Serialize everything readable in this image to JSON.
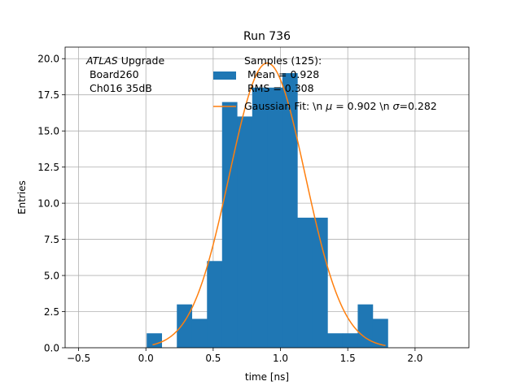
{
  "chart_data": {
    "type": "bar",
    "title": "Run 736",
    "xlabel": "time [ns]",
    "ylabel": "Entries",
    "xlim": [
      -0.6,
      2.4
    ],
    "ylim": [
      0,
      20.8
    ],
    "grid": true,
    "xticks": [
      -0.5,
      0.0,
      0.5,
      1.0,
      1.5,
      2.0
    ],
    "xtick_labels": [
      "−0.5",
      "0.0",
      "0.5",
      "1.0",
      "1.5",
      "2.0"
    ],
    "yticks": [
      0.0,
      2.5,
      5.0,
      7.5,
      10.0,
      12.5,
      15.0,
      17.5,
      20.0
    ],
    "ytick_labels": [
      "0.0",
      "2.5",
      "5.0",
      "7.5",
      "10.0",
      "12.5",
      "15.0",
      "17.5",
      "20.0"
    ],
    "annotation": {
      "italic": "ATLAS",
      "line1_rest": " Upgrade",
      "line2": " Board260",
      "line3": " Ch016 35dB"
    },
    "histogram": {
      "color": "#1f77b4",
      "bin_edges": [
        0.006,
        0.118,
        0.23,
        0.342,
        0.454,
        0.566,
        0.678,
        0.79,
        0.902,
        1.014,
        1.126,
        1.238,
        1.35,
        1.462,
        1.574,
        1.686,
        1.798
      ],
      "counts": [
        1,
        0,
        3,
        2,
        6,
        17,
        16,
        18,
        18,
        19,
        9,
        9,
        1,
        1,
        3,
        2
      ]
    },
    "fit": {
      "color": "#ff7f0e",
      "mu": 0.902,
      "sigma": 0.282,
      "amplitude": 19.7,
      "x_range": [
        0.05,
        1.78
      ]
    },
    "legend": {
      "position": "upper right",
      "hist_line1": "Samples (125):",
      "hist_line2": " Mean = 0.928",
      "hist_line3": " RMS = 0.308",
      "fit_prefix": "Gaussian Fit: \\n ",
      "fit_mu_symbol": "μ",
      "fit_mid": " = 0.902 \\n ",
      "fit_sigma_symbol": "σ",
      "fit_suffix": "=0.282"
    }
  }
}
